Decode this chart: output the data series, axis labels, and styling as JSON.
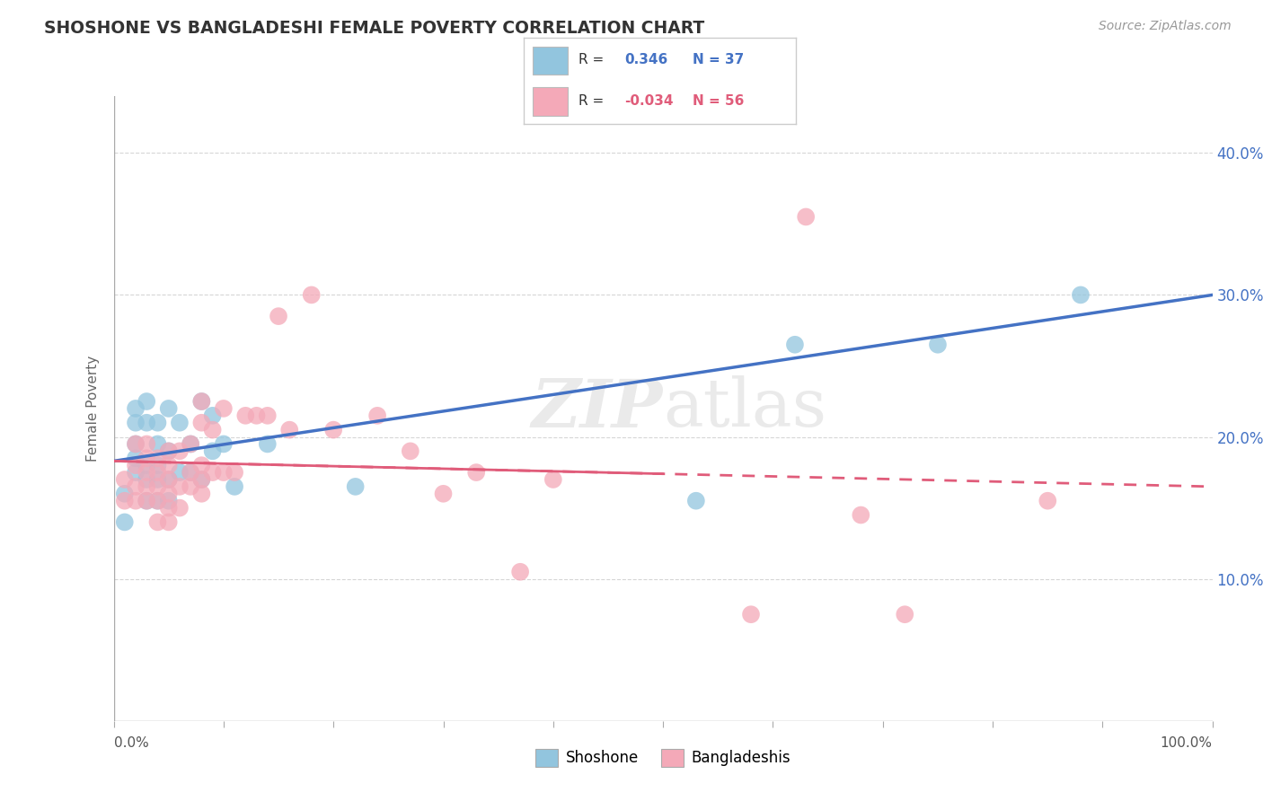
{
  "title": "SHOSHONE VS BANGLADESHI FEMALE POVERTY CORRELATION CHART",
  "source": "Source: ZipAtlas.com",
  "ylabel": "Female Poverty",
  "watermark": "ZIPatlas",
  "yticks": [
    0.1,
    0.2,
    0.3,
    0.4
  ],
  "ytick_labels": [
    "10.0%",
    "20.0%",
    "30.0%",
    "40.0%"
  ],
  "shoshone_color": "#92C5DE",
  "bangladeshi_color": "#F4A9B8",
  "shoshone_line_color": "#4472C4",
  "bangladeshi_line_color": "#E05C7A",
  "background": "#FFFFFF",
  "title_color": "#333333",
  "grid_color": "#CCCCCC",
  "axis_color": "#AAAAAA",
  "shoshone_x": [
    0.01,
    0.01,
    0.02,
    0.02,
    0.02,
    0.02,
    0.02,
    0.03,
    0.03,
    0.03,
    0.03,
    0.03,
    0.04,
    0.04,
    0.04,
    0.04,
    0.04,
    0.05,
    0.05,
    0.05,
    0.05,
    0.06,
    0.06,
    0.07,
    0.07,
    0.08,
    0.08,
    0.09,
    0.09,
    0.1,
    0.11,
    0.14,
    0.22,
    0.53,
    0.62,
    0.75,
    0.88
  ],
  "shoshone_y": [
    0.14,
    0.16,
    0.175,
    0.185,
    0.195,
    0.21,
    0.22,
    0.155,
    0.17,
    0.18,
    0.21,
    0.225,
    0.155,
    0.17,
    0.18,
    0.195,
    0.21,
    0.155,
    0.17,
    0.19,
    0.22,
    0.175,
    0.21,
    0.175,
    0.195,
    0.17,
    0.225,
    0.19,
    0.215,
    0.195,
    0.165,
    0.195,
    0.165,
    0.155,
    0.265,
    0.265,
    0.3
  ],
  "bangladeshi_x": [
    0.01,
    0.01,
    0.02,
    0.02,
    0.02,
    0.02,
    0.03,
    0.03,
    0.03,
    0.03,
    0.03,
    0.04,
    0.04,
    0.04,
    0.04,
    0.04,
    0.05,
    0.05,
    0.05,
    0.05,
    0.05,
    0.05,
    0.06,
    0.06,
    0.06,
    0.07,
    0.07,
    0.07,
    0.08,
    0.08,
    0.08,
    0.08,
    0.08,
    0.09,
    0.09,
    0.1,
    0.1,
    0.11,
    0.12,
    0.13,
    0.14,
    0.15,
    0.16,
    0.18,
    0.2,
    0.24,
    0.27,
    0.3,
    0.33,
    0.37,
    0.4,
    0.58,
    0.63,
    0.68,
    0.72,
    0.85
  ],
  "bangladeshi_y": [
    0.155,
    0.17,
    0.155,
    0.165,
    0.18,
    0.195,
    0.155,
    0.165,
    0.175,
    0.185,
    0.195,
    0.14,
    0.155,
    0.165,
    0.175,
    0.185,
    0.14,
    0.15,
    0.16,
    0.17,
    0.18,
    0.19,
    0.15,
    0.165,
    0.19,
    0.165,
    0.175,
    0.195,
    0.16,
    0.17,
    0.18,
    0.21,
    0.225,
    0.175,
    0.205,
    0.175,
    0.22,
    0.175,
    0.215,
    0.215,
    0.215,
    0.285,
    0.205,
    0.3,
    0.205,
    0.215,
    0.19,
    0.16,
    0.175,
    0.105,
    0.17,
    0.075,
    0.355,
    0.145,
    0.075,
    0.155
  ],
  "shoshone_line_x": [
    0.0,
    1.0
  ],
  "shoshone_line_y": [
    0.183,
    0.3
  ],
  "bangladeshi_line_x": [
    0.0,
    1.0
  ],
  "bangladeshi_line_y": [
    0.183,
    0.165
  ],
  "xlim": [
    0.0,
    1.0
  ],
  "ylim": [
    0.0,
    0.44
  ]
}
